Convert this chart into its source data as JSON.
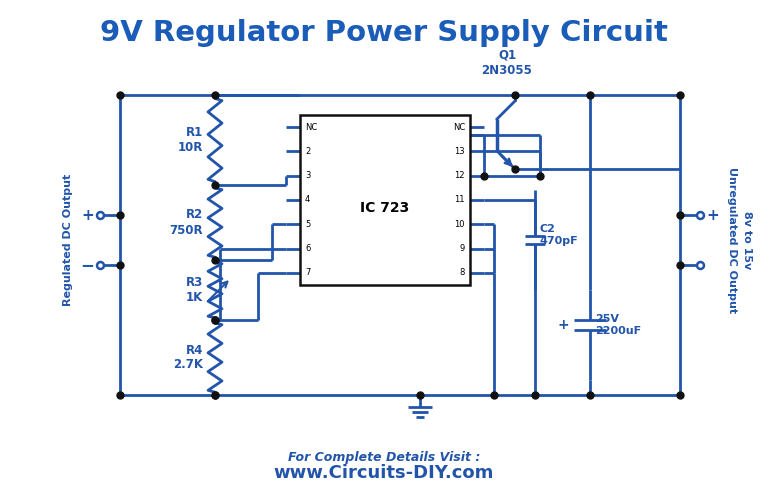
{
  "title": "9V Regulator Power Supply Circuit",
  "title_color": "#1a5cb8",
  "title_fontsize": 21,
  "circuit_color": "#2255aa",
  "background_color": "#ffffff",
  "footer_text1": "For Complete Details Visit :",
  "footer_text2": "www.Circuits-DIY.com",
  "footer_color": "#2255aa",
  "left_label": "Regulated DC Output",
  "right_label1": "Unregulated DC Output",
  "right_label2": "8v to 15v"
}
